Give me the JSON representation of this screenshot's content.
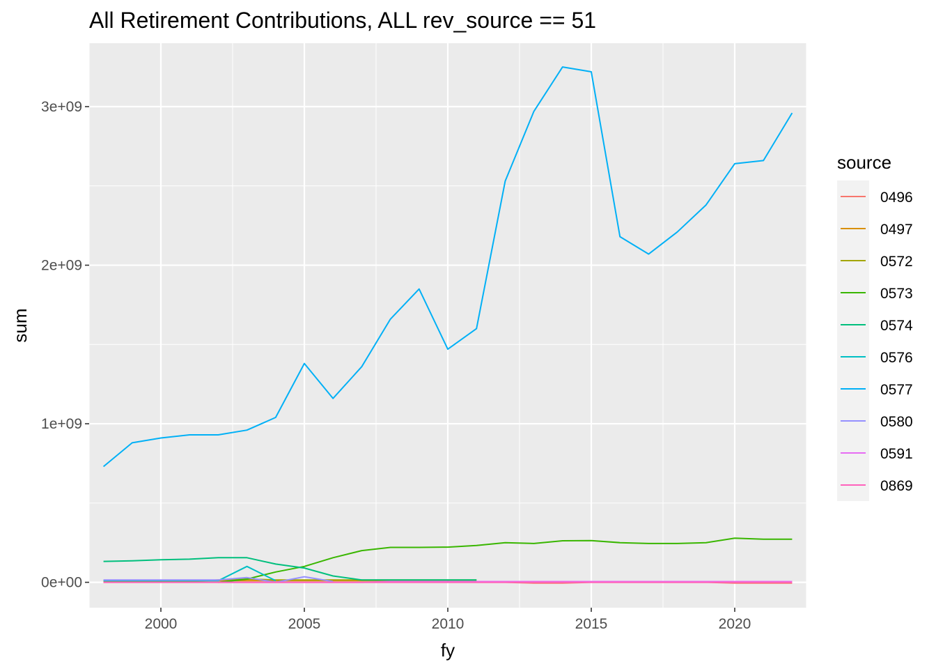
{
  "chart_data": {
    "type": "line",
    "title": "All Retirement Contributions, ALL rev_source == 51",
    "xlabel": "fy",
    "ylabel": "sum",
    "xlim": [
      1997.5,
      2022.5
    ],
    "ylim": [
      -160000000,
      3400000000
    ],
    "x_ticks": [
      2000,
      2005,
      2010,
      2015,
      2020
    ],
    "x_tick_labels": [
      "2000",
      "2005",
      "2010",
      "2015",
      "2020"
    ],
    "y_ticks": [
      0,
      1000000000,
      2000000000,
      3000000000
    ],
    "y_tick_labels": [
      "0e+00",
      "1e+09",
      "2e+09",
      "3e+09"
    ],
    "grid": true,
    "legend": {
      "title": "source",
      "position": "right"
    },
    "x": [
      1998,
      1999,
      2000,
      2001,
      2002,
      2003,
      2004,
      2005,
      2006,
      2007,
      2008,
      2009,
      2010,
      2011,
      2012,
      2013,
      2014,
      2015,
      2016,
      2017,
      2018,
      2019,
      2020,
      2021,
      2022
    ],
    "series": [
      {
        "name": "0496",
        "color": "#F8766D",
        "x": [
          1998,
          1999,
          2000,
          2001,
          2002,
          2003,
          2004,
          2005,
          2006,
          2007,
          2008,
          2009,
          2010,
          2011,
          2012,
          2013,
          2014,
          2015,
          2016,
          2017,
          2018,
          2019,
          2020,
          2021,
          2022
        ],
        "values": [
          0,
          0,
          0,
          0,
          0,
          0,
          0,
          0,
          0,
          0,
          0,
          0,
          0,
          0,
          0,
          -5000000,
          -5000000,
          0,
          0,
          0,
          0,
          0,
          -5000000,
          -5000000,
          -5000000
        ]
      },
      {
        "name": "0497",
        "color": "#D89000",
        "x": [
          1998,
          1999,
          2000,
          2001,
          2002,
          2003,
          2004,
          2005,
          2006,
          2007,
          2008,
          2009,
          2010,
          2011
        ],
        "values": [
          10000000,
          10000000,
          10000000,
          10000000,
          10000000,
          10000000,
          10000000,
          10000000,
          10000000,
          10000000,
          10000000,
          10000000,
          10000000,
          10000000
        ]
      },
      {
        "name": "0572",
        "color": "#A3A500",
        "x": [
          1998,
          1999,
          2000,
          2001,
          2002,
          2003,
          2004,
          2005,
          2006,
          2007,
          2008,
          2009,
          2010,
          2011
        ],
        "values": [
          5000000,
          5000000,
          5000000,
          5000000,
          15000000,
          20000000,
          15000000,
          15000000,
          15000000,
          15000000,
          15000000,
          15000000,
          15000000,
          15000000
        ]
      },
      {
        "name": "0573",
        "color": "#39B600",
        "x": [
          2002,
          2003,
          2004,
          2005,
          2006,
          2007,
          2008,
          2009,
          2010,
          2011,
          2012,
          2013,
          2014,
          2015,
          2016,
          2017,
          2018,
          2019,
          2020,
          2021,
          2022
        ],
        "values": [
          0,
          20000000,
          65000000,
          100000000,
          155000000,
          200000000,
          220000000,
          220000000,
          222000000,
          232000000,
          250000000,
          245000000,
          262000000,
          263000000,
          250000000,
          245000000,
          245000000,
          250000000,
          278000000,
          272000000,
          272000000
        ]
      },
      {
        "name": "0574",
        "color": "#00BF7D",
        "x": [
          1998,
          1999,
          2000,
          2001,
          2002,
          2003,
          2004,
          2005,
          2006,
          2007,
          2008,
          2009,
          2010,
          2011
        ],
        "values": [
          132000000,
          136000000,
          142000000,
          146000000,
          155000000,
          155000000,
          115000000,
          90000000,
          40000000,
          15000000,
          15000000,
          15000000,
          15000000,
          15000000
        ]
      },
      {
        "name": "0576",
        "color": "#00BFC4",
        "x": [
          1998,
          1999,
          2000,
          2001,
          2002,
          2003,
          2004
        ],
        "values": [
          10000000,
          10000000,
          10000000,
          10000000,
          10000000,
          100000000,
          10000000
        ]
      },
      {
        "name": "0577",
        "color": "#00B0F6",
        "x": [
          1998,
          1999,
          2000,
          2001,
          2002,
          2003,
          2004,
          2005,
          2006,
          2007,
          2008,
          2009,
          2010,
          2011,
          2012,
          2013,
          2014,
          2015,
          2016,
          2017,
          2018,
          2019,
          2020,
          2021,
          2022
        ],
        "values": [
          730000000,
          880000000,
          910000000,
          930000000,
          930000000,
          960000000,
          1040000000,
          1380000000,
          1160000000,
          1360000000,
          1660000000,
          1850000000,
          1470000000,
          1600000000,
          2530000000,
          2970000000,
          3250000000,
          3220000000,
          2180000000,
          2070000000,
          2210000000,
          2380000000,
          2640000000,
          2660000000,
          2960000000
        ]
      },
      {
        "name": "0580",
        "color": "#9590FF",
        "x": [
          1998,
          1999,
          2000,
          2001,
          2002,
          2003,
          2004,
          2005,
          2006
        ],
        "values": [
          15000000,
          15000000,
          15000000,
          15000000,
          15000000,
          30000000,
          0,
          35000000,
          5000000
        ]
      },
      {
        "name": "0591",
        "color": "#E76BF3",
        "x": [
          2002,
          2003,
          2004,
          2005,
          2006,
          2007,
          2008,
          2009,
          2010,
          2011,
          2012,
          2013,
          2014,
          2015,
          2016,
          2017,
          2018,
          2019,
          2020,
          2021,
          2022
        ],
        "values": [
          0,
          0,
          0,
          0,
          0,
          0,
          5000000,
          5000000,
          5000000,
          5000000,
          5000000,
          5000000,
          5000000,
          5000000,
          5000000,
          5000000,
          5000000,
          5000000,
          5000000,
          5000000,
          5000000
        ]
      },
      {
        "name": "0869",
        "color": "#FF62BC",
        "x": [
          1998,
          1999,
          2000,
          2001,
          2002,
          2003,
          2004,
          2005,
          2006,
          2007,
          2008,
          2009,
          2010,
          2011,
          2012,
          2013,
          2014,
          2015,
          2016,
          2017,
          2018,
          2019,
          2020,
          2021,
          2022
        ],
        "values": [
          0,
          0,
          0,
          0,
          0,
          0,
          0,
          0,
          0,
          0,
          0,
          0,
          0,
          0,
          0,
          0,
          0,
          0,
          0,
          0,
          0,
          0,
          0,
          0,
          0
        ]
      }
    ]
  }
}
